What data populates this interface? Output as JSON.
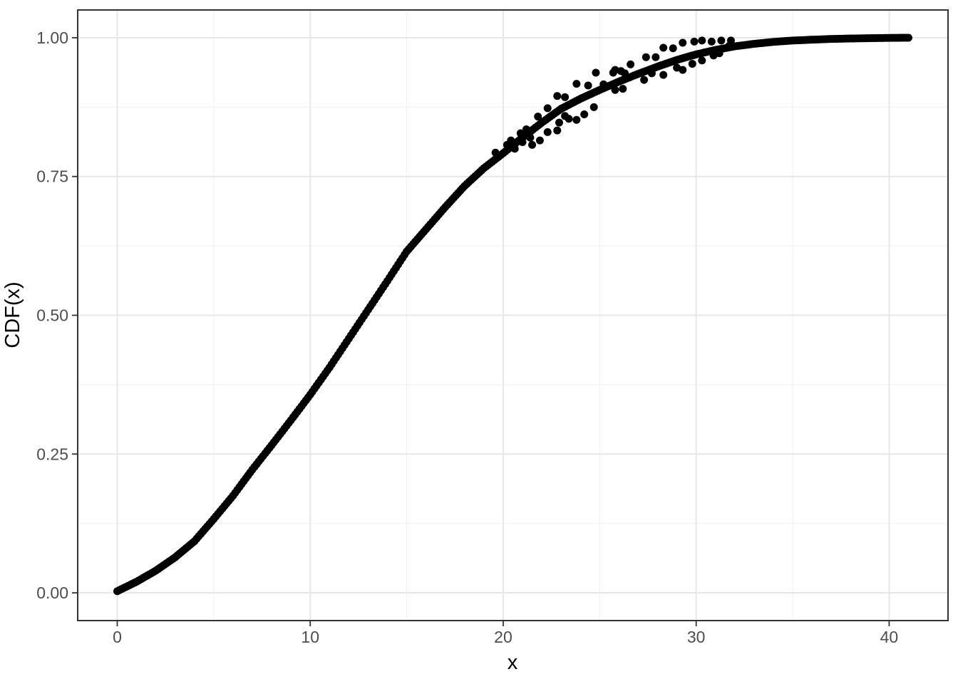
{
  "chart_data": {
    "type": "scatter",
    "title": "",
    "xlabel": "x",
    "ylabel": "CDF(x)",
    "x_axis": {
      "title": "x",
      "range": [
        -2.05,
        43.05
      ],
      "ticks": [
        {
          "v": 0,
          "label": "0"
        },
        {
          "v": 10,
          "label": "10"
        },
        {
          "v": 20,
          "label": "20"
        },
        {
          "v": 30,
          "label": "30"
        },
        {
          "v": 40,
          "label": "40"
        }
      ],
      "minor": [
        5,
        15,
        25,
        35
      ]
    },
    "y_axis": {
      "title": "CDF(x)",
      "range": [
        -0.05,
        1.05
      ],
      "ticks": [
        {
          "v": 0,
          "label": "0.00"
        },
        {
          "v": 0.25,
          "label": "0.25"
        },
        {
          "v": 0.5,
          "label": "0.50"
        },
        {
          "v": 0.75,
          "label": "0.75"
        },
        {
          "v": 1,
          "label": "1.00"
        }
      ],
      "minor": [
        0.125,
        0.375,
        0.625,
        0.875
      ]
    },
    "grid": true,
    "legend": "none",
    "point_radius": 5.5,
    "curve_dot_step": 0.12,
    "colors": {
      "points": "#000000",
      "grid_major": "#e7e7e7",
      "grid_minor": "#f2f2f2",
      "panel_border": "#333333",
      "tick_mark": "#333333",
      "axis_text": "#4d4d4d",
      "axis_title": "#000000",
      "background": "#ffffff"
    },
    "series": [
      {
        "name": "cdf-curve",
        "style": "dense-dots",
        "points": [
          [
            0,
            0.003
          ],
          [
            1,
            0.02
          ],
          [
            2,
            0.04
          ],
          [
            3,
            0.064
          ],
          [
            4,
            0.093
          ],
          [
            5,
            0.133
          ],
          [
            6,
            0.175
          ],
          [
            7,
            0.222
          ],
          [
            8,
            0.266
          ],
          [
            9,
            0.311
          ],
          [
            10,
            0.357
          ],
          [
            11,
            0.406
          ],
          [
            12,
            0.458
          ],
          [
            13,
            0.51
          ],
          [
            14,
            0.562
          ],
          [
            15,
            0.615
          ],
          [
            16,
            0.655
          ],
          [
            17,
            0.695
          ],
          [
            18,
            0.733
          ],
          [
            19,
            0.765
          ],
          [
            20,
            0.792
          ],
          [
            21,
            0.82
          ],
          [
            22,
            0.847
          ],
          [
            23,
            0.872
          ],
          [
            24,
            0.89
          ],
          [
            25,
            0.906
          ],
          [
            26,
            0.921
          ],
          [
            27,
            0.935
          ],
          [
            28,
            0.948
          ],
          [
            29,
            0.96
          ],
          [
            30,
            0.97
          ],
          [
            31,
            0.978
          ],
          [
            32,
            0.9845
          ],
          [
            33,
            0.989
          ],
          [
            34,
            0.9925
          ],
          [
            35,
            0.995
          ],
          [
            36,
            0.9965
          ],
          [
            37,
            0.9978
          ],
          [
            38,
            0.9986
          ],
          [
            39,
            0.9992
          ],
          [
            40,
            0.9997
          ],
          [
            41,
            1.0
          ]
        ]
      },
      {
        "name": "noisy-points",
        "style": "dots",
        "points": [
          [
            19.6,
            0.793
          ],
          [
            20.2,
            0.807
          ],
          [
            20.4,
            0.815
          ],
          [
            20.6,
            0.8
          ],
          [
            20.9,
            0.828
          ],
          [
            21.0,
            0.812
          ],
          [
            21.2,
            0.835
          ],
          [
            21.4,
            0.82
          ],
          [
            21.5,
            0.807
          ],
          [
            21.8,
            0.858
          ],
          [
            21.9,
            0.815
          ],
          [
            22.3,
            0.873
          ],
          [
            22.3,
            0.83
          ],
          [
            22.8,
            0.895
          ],
          [
            22.8,
            0.833
          ],
          [
            22.9,
            0.847
          ],
          [
            23.2,
            0.893
          ],
          [
            23.2,
            0.859
          ],
          [
            23.4,
            0.854
          ],
          [
            23.8,
            0.852
          ],
          [
            23.8,
            0.917
          ],
          [
            24.2,
            0.862
          ],
          [
            24.4,
            0.914
          ],
          [
            24.7,
            0.875
          ],
          [
            24.8,
            0.937
          ],
          [
            25.2,
            0.916
          ],
          [
            25.7,
            0.937
          ],
          [
            25.8,
            0.942
          ],
          [
            25.8,
            0.906
          ],
          [
            26.1,
            0.94
          ],
          [
            26.2,
            0.908
          ],
          [
            26.3,
            0.936
          ],
          [
            26.6,
            0.952
          ],
          [
            27.3,
            0.924
          ],
          [
            27.4,
            0.965
          ],
          [
            27.7,
            0.936
          ],
          [
            27.9,
            0.965
          ],
          [
            28.3,
            0.933
          ],
          [
            28.3,
            0.982
          ],
          [
            28.8,
            0.981
          ],
          [
            29.0,
            0.946
          ],
          [
            29.3,
            0.991
          ],
          [
            29.3,
            0.942
          ],
          [
            29.8,
            0.953
          ],
          [
            29.9,
            0.993
          ],
          [
            30.3,
            0.995
          ],
          [
            30.3,
            0.959
          ],
          [
            30.8,
            0.993
          ],
          [
            30.9,
            0.968
          ],
          [
            31.2,
            0.972
          ],
          [
            31.3,
            0.995
          ],
          [
            31.7,
            0.985
          ],
          [
            31.8,
            0.995
          ]
        ]
      }
    ]
  }
}
